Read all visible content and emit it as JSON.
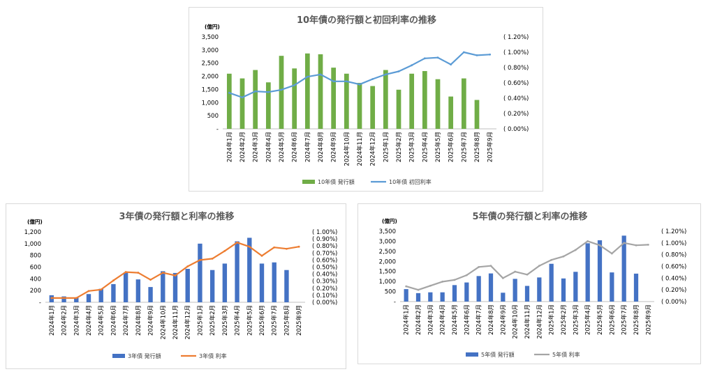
{
  "charts": [
    {
      "id": "p10",
      "type": "bar",
      "title": "10年債の発行額と初回利率の推移",
      "unit_label": "(億円)",
      "categories": [
        "2024年1月",
        "2024年2月",
        "2024年3月",
        "2024年4月",
        "2024年5月",
        "2024年6月",
        "2024年7月",
        "2024年8月",
        "2024年9月",
        "2024年10月",
        "2024年11月",
        "2024年12月",
        "2025年1月",
        "2025年2月",
        "2025年3月",
        "2025年4月",
        "2025年5月",
        "2025年6月",
        "2025年7月",
        "2025年8月",
        "2025年9月"
      ],
      "bar_series": {
        "name": "10年債 発行額",
        "color": "#70ad47",
        "values": [
          2100,
          1920,
          2240,
          1770,
          2780,
          2300,
          2870,
          2840,
          2330,
          2100,
          1750,
          1630,
          2240,
          1490,
          2100,
          2200,
          1890,
          1230,
          1920,
          1100,
          null
        ]
      },
      "line_series": {
        "name": "10年債 初回利率",
        "color": "#5b9bd5",
        "values": [
          0.47,
          0.41,
          0.49,
          0.48,
          0.51,
          0.57,
          0.68,
          0.71,
          0.62,
          0.62,
          0.58,
          0.65,
          0.71,
          0.75,
          0.83,
          0.92,
          0.93,
          0.84,
          1.0,
          0.96,
          0.97
        ]
      },
      "ylim_left": [
        0,
        3500
      ],
      "ylim_right": [
        0,
        1.2
      ],
      "left_ticks": [
        "-",
        "500",
        "1,000",
        "1,500",
        "2,000",
        "2,500",
        "3,000",
        "3,500"
      ],
      "right_ticks": [
        "( 0.00%)",
        "( 0.20%)",
        "( 0.40%)",
        "( 0.60%)",
        "( 0.80%)",
        "( 1.00%)",
        "( 1.20%)"
      ]
    },
    {
      "id": "p3",
      "type": "bar",
      "title": "3年債の発行額と利率の推移",
      "unit_label": "(億円)",
      "categories": [
        "2024年1月",
        "2024年2月",
        "2024年3月",
        "2024年4月",
        "2024年5月",
        "2024年6月",
        "2024年7月",
        "2024年8月",
        "2024年9月",
        "2024年10月",
        "2024年11月",
        "2024年12月",
        "2025年1月",
        "2025年2月",
        "2025年3月",
        "2025年4月",
        "2025年5月",
        "2025年6月",
        "2025年7月",
        "2025年8月",
        "2025年9月"
      ],
      "bar_series": {
        "name": "3年債 発行額",
        "color": "#4472c4",
        "values": [
          120,
          100,
          80,
          140,
          230,
          310,
          510,
          390,
          260,
          530,
          500,
          570,
          1000,
          550,
          660,
          1040,
          1100,
          660,
          680,
          550,
          null
        ]
      },
      "line_series": {
        "name": "3年債 利率",
        "color": "#ed7d31",
        "values": [
          0.06,
          0.06,
          0.06,
          0.16,
          0.18,
          0.31,
          0.43,
          0.42,
          0.32,
          0.42,
          0.38,
          0.51,
          0.6,
          0.62,
          0.73,
          0.85,
          0.79,
          0.66,
          0.78,
          0.76,
          0.79
        ]
      },
      "ylim_left": [
        0,
        1200
      ],
      "ylim_right": [
        0,
        1.0
      ],
      "left_ticks": [
        "-",
        "200",
        "400",
        "600",
        "800",
        "1,000",
        "1,200"
      ],
      "right_ticks": [
        "( 0.00%)",
        "( 0.10%)",
        "( 0.20%)",
        "( 0.30%)",
        "( 0.40%)",
        "( 0.50%)",
        "( 0.60%)",
        "( 0.70%)",
        "( 0.80%)",
        "( 0.90%)",
        "( 1.00%)"
      ]
    },
    {
      "id": "p5",
      "type": "bar",
      "title": "5年債の発行額と利率の推移",
      "unit_label": "(億円)",
      "categories": [
        "2024年1月",
        "2024年2月",
        "2024年3月",
        "2024年4月",
        "2024年5月",
        "2024年6月",
        "2024年7月",
        "2024年8月",
        "2024年9月",
        "2024年10月",
        "2024年11月",
        "2024年12月",
        "2025年1月",
        "2025年2月",
        "2025年3月",
        "2025年4月",
        "2025年5月",
        "2025年6月",
        "2025年7月",
        "2025年8月",
        "2025年9月"
      ],
      "bar_series": {
        "name": "5年債 発行額",
        "color": "#4472c4",
        "values": [
          620,
          420,
          460,
          460,
          820,
          950,
          1270,
          1400,
          440,
          1130,
          780,
          1200,
          1880,
          1150,
          1480,
          2900,
          3050,
          1450,
          3280,
          1390,
          null
        ]
      },
      "line_series": {
        "name": "5年債 利率",
        "color": "#a5a5a5",
        "values": [
          0.26,
          0.2,
          0.27,
          0.34,
          0.37,
          0.45,
          0.59,
          0.61,
          0.4,
          0.51,
          0.46,
          0.61,
          0.71,
          0.77,
          0.88,
          1.03,
          0.96,
          0.82,
          1.0,
          0.96,
          0.97
        ]
      },
      "ylim_left": [
        0,
        3500
      ],
      "ylim_right": [
        0,
        1.2
      ],
      "left_ticks": [
        "-",
        "500",
        "1,000",
        "1,500",
        "2,000",
        "2,500",
        "3,000",
        "3,500"
      ],
      "right_ticks": [
        "( 0.00%)",
        "( 0.20%)",
        "( 0.40%)",
        "( 0.60%)",
        "( 0.80%)",
        "( 1.00%)",
        "( 1.20%)"
      ]
    }
  ],
  "chart_data": [
    {
      "type": "bar",
      "title": "10年債の発行額と初回利率の推移",
      "categories": [
        "2024年1月",
        "2024年2月",
        "2024年3月",
        "2024年4月",
        "2024年5月",
        "2024年6月",
        "2024年7月",
        "2024年8月",
        "2024年9月",
        "2024年10月",
        "2024年11月",
        "2024年12月",
        "2025年1月",
        "2025年2月",
        "2025年3月",
        "2025年4月",
        "2025年5月",
        "2025年6月",
        "2025年7月",
        "2025年8月",
        "2025年9月"
      ],
      "series": [
        {
          "name": "10年債 発行額",
          "type": "bar",
          "axis": "left",
          "values": [
            2100,
            1920,
            2240,
            1770,
            2780,
            2300,
            2870,
            2840,
            2330,
            2100,
            1750,
            1630,
            2240,
            1490,
            2100,
            2200,
            1890,
            1230,
            1920,
            1100,
            null
          ]
        },
        {
          "name": "10年債 初回利率",
          "type": "line",
          "axis": "right",
          "values": [
            0.47,
            0.41,
            0.49,
            0.48,
            0.51,
            0.57,
            0.68,
            0.71,
            0.62,
            0.62,
            0.58,
            0.65,
            0.71,
            0.75,
            0.83,
            0.92,
            0.93,
            0.84,
            1.0,
            0.96,
            0.97
          ]
        }
      ],
      "ylabel": "(億円)",
      "ylim": [
        0,
        3500
      ],
      "y2lim": [
        0,
        1.2
      ],
      "legend": "bottom"
    },
    {
      "type": "bar",
      "title": "3年債の発行額と利率の推移",
      "categories": [
        "2024年1月",
        "2024年2月",
        "2024年3月",
        "2024年4月",
        "2024年5月",
        "2024年6月",
        "2024年7月",
        "2024年8月",
        "2024年9月",
        "2024年10月",
        "2024年11月",
        "2024年12月",
        "2025年1月",
        "2025年2月",
        "2025年3月",
        "2025年4月",
        "2025年5月",
        "2025年6月",
        "2025年7月",
        "2025年8月",
        "2025年9月"
      ],
      "series": [
        {
          "name": "3年債 発行額",
          "type": "bar",
          "axis": "left",
          "values": [
            120,
            100,
            80,
            140,
            230,
            310,
            510,
            390,
            260,
            530,
            500,
            570,
            1000,
            550,
            660,
            1040,
            1100,
            660,
            680,
            550,
            null
          ]
        },
        {
          "name": "3年債 利率",
          "type": "line",
          "axis": "right",
          "values": [
            0.06,
            0.06,
            0.06,
            0.16,
            0.18,
            0.31,
            0.43,
            0.42,
            0.32,
            0.42,
            0.38,
            0.51,
            0.6,
            0.62,
            0.73,
            0.85,
            0.79,
            0.66,
            0.78,
            0.76,
            0.79
          ]
        }
      ],
      "ylabel": "(億円)",
      "ylim": [
        0,
        1200
      ],
      "y2lim": [
        0,
        1.0
      ],
      "legend": "bottom"
    },
    {
      "type": "bar",
      "title": "5年債の発行額と利率の推移",
      "categories": [
        "2024年1月",
        "2024年2月",
        "2024年3月",
        "2024年4月",
        "2024年5月",
        "2024年6月",
        "2024年7月",
        "2024年8月",
        "2024年9月",
        "2024年10月",
        "2024年11月",
        "2024年12月",
        "2025年1月",
        "2025年2月",
        "2025年3月",
        "2025年4月",
        "2025年5月",
        "2025年6月",
        "2025年7月",
        "2025年8月",
        "2025年9月"
      ],
      "series": [
        {
          "name": "5年債 発行額",
          "type": "bar",
          "axis": "left",
          "values": [
            620,
            420,
            460,
            460,
            820,
            950,
            1270,
            1400,
            440,
            1130,
            780,
            1200,
            1880,
            1150,
            1480,
            2900,
            3050,
            1450,
            3280,
            1390,
            null
          ]
        },
        {
          "name": "5年債 利率",
          "type": "line",
          "axis": "right",
          "values": [
            0.26,
            0.2,
            0.27,
            0.34,
            0.37,
            0.45,
            0.59,
            0.61,
            0.4,
            0.51,
            0.46,
            0.61,
            0.71,
            0.77,
            0.88,
            1.03,
            0.96,
            0.82,
            1.0,
            0.96,
            0.97
          ]
        }
      ],
      "ylabel": "(億円)",
      "ylim": [
        0,
        3500
      ],
      "y2lim": [
        0,
        1.2
      ],
      "legend": "bottom"
    }
  ]
}
